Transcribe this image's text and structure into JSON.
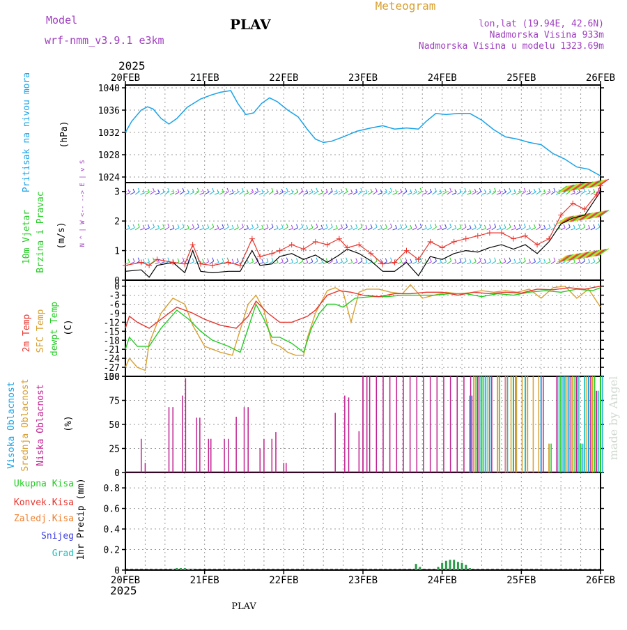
{
  "header": {
    "model_label": "Model",
    "model_name": "wrf-nmm_v3.9.1  e3km",
    "station": "PLAV",
    "title": "Meteogram",
    "lonlat": "lon,lat (19.94E, 42.6N)",
    "elevation": "Nadmorska Visina 933m",
    "model_elevation": "Nadmorska Visina u modelu 1323.69m",
    "year_top": "2025",
    "year_bottom": "2025",
    "footer_station": "PLAV",
    "watermark": "made by Angel"
  },
  "colors": {
    "pressure": "#1aa3e8",
    "red": "#e8332c",
    "orange": "#d9a030",
    "green": "#22cc22",
    "magenta": "#c02090",
    "purple": "#a040c0",
    "cyan": "#20c0c0",
    "blue": "#4040e0",
    "wind_label": "#22cc22",
    "high_cloud": "#1aa3e8",
    "mid_cloud": "#d9a030"
  },
  "chart_data": [
    {
      "type": "line",
      "panel": "pressure",
      "ylabel_side": "Pritisak na nivou mora",
      "unit": "(hPa)",
      "x_days": [
        "20FEB",
        "21FEB",
        "22FEB",
        "23FEB",
        "24FEB",
        "25FEB",
        "26FEB"
      ],
      "yticks": [
        1024,
        1028,
        1032,
        1036,
        1040
      ],
      "ylim": [
        1023,
        1040.5
      ],
      "series": [
        {
          "name": "MSL pressure",
          "x": [
            0,
            0.08,
            0.2,
            0.28,
            0.35,
            0.45,
            0.55,
            0.65,
            0.78,
            0.95,
            1.08,
            1.2,
            1.33,
            1.42,
            1.52,
            1.62,
            1.72,
            1.82,
            1.92,
            2.05,
            2.18,
            2.3,
            2.4,
            2.5,
            2.6,
            2.75,
            2.92,
            3.1,
            3.25,
            3.4,
            3.55,
            3.7,
            3.8,
            3.92,
            4.05,
            4.2,
            4.35,
            4.5,
            4.65,
            4.8,
            4.95,
            5.1,
            5.25,
            5.4,
            5.55,
            5.7,
            5.85,
            6.0
          ],
          "values": [
            1032,
            1034,
            1036,
            1036.6,
            1036.2,
            1034.5,
            1033.5,
            1034.5,
            1036.5,
            1038,
            1038.7,
            1039.2,
            1039.5,
            1037.2,
            1035.2,
            1035.5,
            1037.2,
            1038.2,
            1037.5,
            1036,
            1034.8,
            1032.5,
            1030.8,
            1030.2,
            1030.4,
            1031.2,
            1032.2,
            1032.8,
            1033.2,
            1032.6,
            1032.8,
            1032.6,
            1034,
            1035.4,
            1035.2,
            1035.4,
            1035.4,
            1034.2,
            1032.5,
            1031.2,
            1030.8,
            1030.2,
            1029.8,
            1028.2,
            1027.2,
            1025.8,
            1025.4,
            1024.2
          ]
        }
      ]
    },
    {
      "type": "line",
      "panel": "wind",
      "ylabel_side_1": "10m Vjetar",
      "ylabel_side_2": "Brzina i Pravac",
      "unit": "(m/s)",
      "compass": "N\n^\n|\nW <-- --> E\n|\nv\nS",
      "yticks": [
        0,
        1,
        2,
        3
      ],
      "ylim": [
        0,
        3.3
      ],
      "series": [
        {
          "name": "wind speed 10m",
          "x": [
            0,
            0.2,
            0.3,
            0.4,
            0.6,
            0.75,
            0.85,
            0.95,
            1.1,
            1.3,
            1.45,
            1.6,
            1.7,
            1.85,
            1.95,
            2.1,
            2.25,
            2.4,
            2.55,
            2.7,
            2.8,
            2.95,
            3.1,
            3.25,
            3.4,
            3.55,
            3.7,
            3.85,
            4.0,
            4.15,
            4.3,
            4.45,
            4.6,
            4.75,
            4.9,
            5.05,
            5.2,
            5.35,
            5.5,
            5.65,
            5.8,
            5.95,
            6.0
          ],
          "values": [
            0.3,
            0.35,
            0.1,
            0.5,
            0.6,
            0.25,
            1.0,
            0.3,
            0.25,
            0.3,
            0.3,
            1.0,
            0.5,
            0.55,
            0.8,
            0.9,
            0.7,
            0.85,
            0.6,
            0.85,
            1.05,
            0.9,
            0.65,
            0.3,
            0.3,
            0.6,
            0.15,
            0.8,
            0.7,
            0.9,
            1.0,
            0.95,
            1.1,
            1.2,
            1.05,
            1.2,
            0.9,
            1.3,
            1.9,
            2.1,
            2.2,
            2.8,
            3.0
          ]
        },
        {
          "name": "wind gust",
          "x": [
            0,
            0.2,
            0.3,
            0.4,
            0.6,
            0.75,
            0.85,
            0.95,
            1.1,
            1.3,
            1.45,
            1.6,
            1.7,
            1.85,
            1.95,
            2.1,
            2.25,
            2.4,
            2.55,
            2.7,
            2.8,
            2.95,
            3.1,
            3.25,
            3.4,
            3.55,
            3.7,
            3.85,
            4.0,
            4.15,
            4.3,
            4.45,
            4.6,
            4.75,
            4.9,
            5.05,
            5.2,
            5.35,
            5.5,
            5.65,
            5.8,
            5.95,
            6.0
          ],
          "values": [
            0.5,
            0.6,
            0.5,
            0.7,
            0.6,
            0.55,
            1.2,
            0.55,
            0.5,
            0.6,
            0.5,
            1.4,
            0.8,
            0.9,
            1.0,
            1.2,
            1.05,
            1.3,
            1.2,
            1.4,
            1.1,
            1.2,
            0.9,
            0.55,
            0.6,
            1.0,
            0.7,
            1.3,
            1.1,
            1.3,
            1.4,
            1.5,
            1.6,
            1.6,
            1.4,
            1.5,
            1.2,
            1.4,
            2.2,
            2.6,
            2.4,
            2.9,
            3.2
          ]
        }
      ],
      "barb_rows": [
        2.9,
        1.7,
        0.55
      ]
    },
    {
      "type": "line",
      "panel": "temperature",
      "ylabel_side_1": "2m Temp",
      "ylabel_side_2": "SFC Temp",
      "ylabel_side_3": "dewpt Temp",
      "unit": "(C)",
      "yticks": [
        0,
        -3,
        -6,
        -9,
        -12,
        -15,
        -18,
        -21,
        -24,
        -27,
        -30
      ],
      "ylim": [
        -30,
        2
      ],
      "series": [
        {
          "name": "2m Temp",
          "x": [
            0,
            0.05,
            0.15,
            0.3,
            0.45,
            0.65,
            0.85,
            1.0,
            1.2,
            1.4,
            1.55,
            1.65,
            1.8,
            1.95,
            2.1,
            2.2,
            2.3,
            2.4,
            2.55,
            2.7,
            2.85,
            3.0,
            3.2,
            3.4,
            3.6,
            3.8,
            4.0,
            4.2,
            4.4,
            4.6,
            4.8,
            5.0,
            5.2,
            5.4,
            5.6,
            5.8,
            6.0
          ],
          "values": [
            -14,
            -10,
            -12,
            -14,
            -11,
            -7,
            -9,
            -11,
            -13,
            -14,
            -10,
            -5,
            -9,
            -12,
            -12,
            -11,
            -10,
            -8,
            -3,
            -1.5,
            -2,
            -3,
            -3.5,
            -2.5,
            -2.5,
            -2,
            -2,
            -3,
            -2,
            -2.5,
            -2,
            -2.3,
            -1,
            -1.2,
            -0.5,
            -1,
            0
          ]
        },
        {
          "name": "SFC Temp",
          "x": [
            0,
            0.05,
            0.15,
            0.25,
            0.3,
            0.45,
            0.6,
            0.75,
            0.85,
            1.0,
            1.2,
            1.35,
            1.55,
            1.65,
            1.75,
            1.85,
            1.95,
            2.05,
            2.15,
            2.25,
            2.3,
            2.4,
            2.55,
            2.65,
            2.75,
            2.85,
            2.95,
            3.05,
            3.2,
            3.35,
            3.5,
            3.6,
            3.75,
            3.9,
            4.05,
            4.2,
            4.35,
            4.5,
            4.65,
            4.8,
            4.95,
            5.1,
            5.25,
            5.4,
            5.55,
            5.7,
            5.85,
            6.0
          ],
          "values": [
            -27,
            -24,
            -27,
            -28,
            -19,
            -9,
            -4,
            -6,
            -13,
            -20,
            -22,
            -23,
            -6,
            -3,
            -8,
            -19,
            -20,
            -22,
            -23,
            -23,
            -17,
            -9,
            -1.5,
            -0.5,
            -2,
            -12,
            -2,
            -1,
            -1,
            -2,
            -2.5,
            0.5,
            -4,
            -3,
            -2,
            -2.5,
            -2.2,
            -1.5,
            -2,
            -1.5,
            -2,
            -1,
            -4,
            -0.5,
            0,
            -4,
            -1,
            -7
          ]
        },
        {
          "name": "dewpt Temp",
          "x": [
            0,
            0.05,
            0.15,
            0.3,
            0.45,
            0.65,
            0.8,
            0.95,
            1.1,
            1.3,
            1.45,
            1.55,
            1.65,
            1.75,
            1.85,
            1.95,
            2.1,
            2.25,
            2.35,
            2.45,
            2.55,
            2.65,
            2.75,
            2.9,
            3.1,
            3.3,
            3.5,
            3.7,
            3.9,
            4.1,
            4.3,
            4.5,
            4.7,
            4.9,
            5.1,
            5.3,
            5.5,
            5.7,
            5.9,
            6.0
          ],
          "values": [
            -21,
            -17,
            -20,
            -20,
            -14,
            -8,
            -11,
            -15,
            -18,
            -20,
            -22,
            -14,
            -6,
            -11,
            -17,
            -17,
            -19,
            -22,
            -14,
            -9,
            -6,
            -6,
            -7,
            -4,
            -3.5,
            -3.5,
            -3,
            -3,
            -3,
            -2.5,
            -2.5,
            -3.5,
            -2.5,
            -3,
            -2,
            -1.5,
            -2,
            -1,
            -1.5,
            -0.5
          ]
        }
      ]
    },
    {
      "type": "bar",
      "panel": "clouds",
      "ylabel_side_1": "Visoka Oblacnost",
      "ylabel_side_2": "Srednja Oblacnost",
      "ylabel_side_3": "Niska Oblacnost",
      "unit": "(%)",
      "yticks": [
        0,
        25,
        50,
        75,
        100
      ],
      "ylim": [
        0,
        100
      ],
      "series": [
        {
          "name": "Niska Oblacnost",
          "x": [
            0.2,
            0.25,
            0.55,
            0.6,
            0.72,
            0.76,
            0.9,
            0.94,
            1.05,
            1.08,
            1.25,
            1.3,
            1.4,
            1.5,
            1.55,
            1.7,
            1.75,
            1.85,
            1.9,
            2.0,
            2.03,
            2.65,
            2.77,
            2.82,
            2.95,
            3.0,
            3.05
          ],
          "values": [
            35,
            10,
            68,
            68,
            80,
            98,
            57,
            57,
            35,
            35,
            35,
            35,
            58,
            68,
            68,
            25,
            35,
            35,
            42,
            10,
            10,
            62,
            80,
            78,
            43,
            100,
            100
          ]
        },
        {
          "name": "Visoka Oblacnost",
          "x": [
            4.35,
            4.4,
            4.45,
            4.5,
            4.55,
            4.6,
            4.7,
            4.8,
            4.9,
            5.05,
            5.25,
            5.35,
            5.45,
            5.5,
            5.55,
            5.6,
            5.65,
            5.7,
            5.75,
            5.8,
            5.85,
            5.9,
            5.95,
            6.0
          ],
          "values": [
            80,
            100,
            100,
            100,
            100,
            100,
            100,
            100,
            100,
            100,
            100,
            30,
            100,
            100,
            100,
            100,
            100,
            100,
            30,
            100,
            100,
            100,
            85,
            100
          ]
        }
      ]
    },
    {
      "type": "bar",
      "panel": "precip",
      "labels": [
        "Ukupna Kisa",
        "Konvek.Kisa",
        "Zaledj.Kisa",
        "Snijeg",
        "Grad"
      ],
      "unit": "1hr Precip (mm)",
      "yticks": [
        0,
        0.2,
        0.4,
        0.6,
        0.8
      ],
      "ylim": [
        0,
        0.95
      ],
      "series": [
        {
          "name": "Ukupna Kisa",
          "x": [
            0.6,
            0.65,
            0.7,
            0.75,
            0.8,
            0.85,
            3.67,
            3.72,
            3.95,
            4.0,
            4.05,
            4.1,
            4.15,
            4.2,
            4.25,
            4.3,
            4.35
          ],
          "values": [
            0.01,
            0.02,
            0.02,
            0.02,
            0.01,
            0.01,
            0.06,
            0.03,
            0.03,
            0.07,
            0.09,
            0.1,
            0.1,
            0.08,
            0.07,
            0.05,
            0.02
          ]
        }
      ]
    }
  ]
}
